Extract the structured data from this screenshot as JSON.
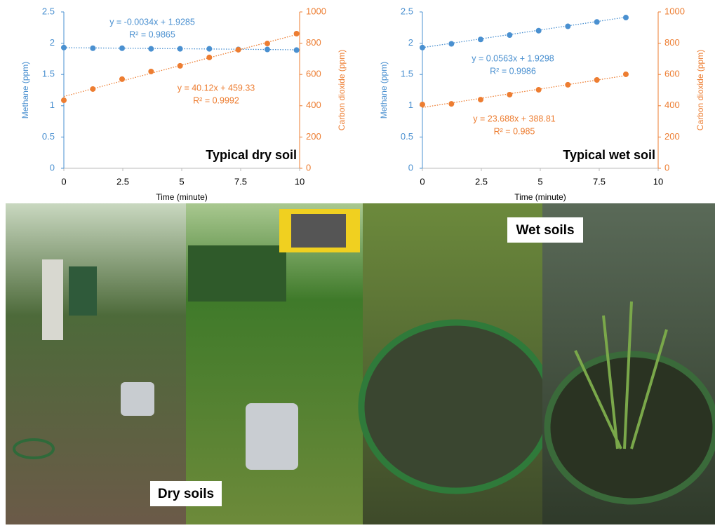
{
  "chart_data": [
    {
      "type": "scatter",
      "title": "Typical dry soil",
      "x_label": "Time (minute)",
      "y_label": "Methane (ppm)",
      "y2_label": "Carbon dioxide (ppm)",
      "x": [
        0,
        1.23,
        2.47,
        3.7,
        4.93,
        6.17,
        7.4,
        8.63,
        9.87
      ],
      "xlim": [
        0,
        10
      ],
      "xticks": [
        0,
        2.5,
        5,
        7.5,
        10
      ],
      "ylim": [
        0,
        2.5
      ],
      "yticks": [
        0,
        0.5,
        1,
        1.5,
        2,
        2.5
      ],
      "y2lim": [
        0,
        1000
      ],
      "y2ticks": [
        0,
        200,
        400,
        600,
        800,
        1000
      ],
      "series": [
        {
          "color": "#4a90d0",
          "values": [
            1.93,
            1.92,
            1.92,
            1.91,
            1.91,
            1.91,
            1.9,
            1.9,
            1.89
          ],
          "trendline": {
            "label": "y = -0.0034x + 1.9285",
            "r2": "R² = 0.9865",
            "slope": -0.0034,
            "intercept": 1.9285
          }
        },
        {
          "color": "#ed7d31",
          "axis": "y2",
          "values": [
            435,
            507,
            570,
            619,
            655,
            709,
            758,
            798,
            861
          ],
          "trendline": {
            "label": "y = 40.12x + 459.33",
            "r2": "R² = 0.9992",
            "slope": 40.12,
            "intercept": 459.33
          }
        }
      ]
    },
    {
      "type": "scatter",
      "title": "Typical wet soil",
      "x_label": "Time (minute)",
      "y_label": "Methane (ppm)",
      "y2_label": "Carbon dioxide (ppm)",
      "x": [
        0,
        1.23,
        2.47,
        3.7,
        4.93,
        6.17,
        7.4,
        8.63
      ],
      "xlim": [
        0,
        10
      ],
      "xticks": [
        0,
        2.5,
        5,
        7.5,
        10
      ],
      "ylim": [
        0,
        2.5
      ],
      "yticks": [
        0,
        0.5,
        1,
        1.5,
        2,
        2.5
      ],
      "y2lim": [
        0,
        1000
      ],
      "y2ticks": [
        0,
        200,
        400,
        600,
        800,
        1000
      ],
      "series": [
        {
          "color": "#4a90d0",
          "values": [
            1.93,
            1.99,
            2.06,
            2.13,
            2.2,
            2.27,
            2.34,
            2.41
          ],
          "trendline": {
            "label": "y = 0.0563x + 1.9298",
            "r2": "R² = 0.9986",
            "slope": 0.0563,
            "intercept": 1.9298
          }
        },
        {
          "color": "#ed7d31",
          "axis": "y2",
          "values": [
            408,
            412,
            439,
            471,
            502,
            534,
            565,
            601
          ],
          "trendline": {
            "label": "y = 23.688x + 388.81",
            "r2": "R² = 0.985",
            "slope": 23.688,
            "intercept": 388.81
          }
        }
      ]
    }
  ],
  "photo_labels": {
    "dry": "Dry soils",
    "wet": "Wet soils"
  }
}
